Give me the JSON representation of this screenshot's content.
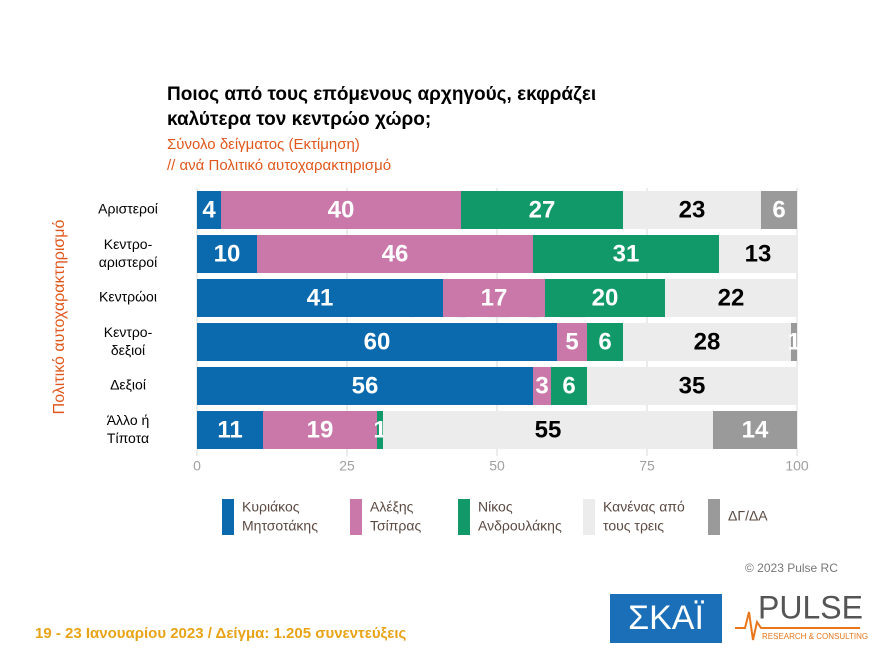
{
  "chart_data": {
    "type": "stacked-barh",
    "title": "Ποιος από τους επόμενους αρχηγούς, εκφράζει\nκαλύτερα τον κεντρώο χώρο;",
    "subtitle": "Σύνολο δείγματος   (Εκτίμηση)",
    "subtitle2": " // ανά Πολιτικό αυτοχαρακτηρισμό",
    "y_label": "Πολιτικό αυτοχαρακτηρισμό",
    "categories": [
      "Αριστεροί",
      "Κεντρο-\nαριστεροί",
      "Κεντρώοι",
      "Κεντρο-\nδεξιοί",
      "Δεξιοί",
      "Άλλο ή\nΤίποτα"
    ],
    "series": [
      {
        "name": "Κυριάκος\nΜητσοτάκης",
        "color": "#0b6aae",
        "label_color": "#ffffff",
        "values": [
          4,
          10,
          41,
          60,
          56,
          11
        ]
      },
      {
        "name": "Αλέξης\nΤσίπρας",
        "color": "#c978a9",
        "label_color": "#ffffff",
        "values": [
          40,
          46,
          17,
          5,
          3,
          19
        ]
      },
      {
        "name": "Νίκος\nΑνδρουλάκης",
        "color": "#11996a",
        "label_color": "#ffffff",
        "values": [
          27,
          31,
          20,
          6,
          6,
          1
        ]
      },
      {
        "name": "Κανένας από\nτους τρεις",
        "color": "#ececec",
        "label_color": "#000000",
        "values": [
          23,
          13,
          22,
          28,
          35,
          55
        ]
      },
      {
        "name": "ΔΓ/ΔΑ",
        "color": "#9a9a9a",
        "label_color": "#ffffff",
        "values": [
          6,
          null,
          null,
          1,
          null,
          14
        ]
      }
    ],
    "xlim": [
      0,
      100
    ],
    "xticks": [
      0,
      25,
      50,
      75,
      100
    ],
    "grid": true,
    "legend": "bottom",
    "watermark": "PULSE",
    "copyright": "© 2023 Pulse RC",
    "footer": "19 - 23 Ιανουαρίου  2023  /  Δείγμα:  1.205 συνεντεύξεις",
    "logos": {
      "skai": "ΣΚΑΪ",
      "pulse": "PULSE",
      "pulse_sub": "RESEARCH & CONSULTING"
    }
  }
}
